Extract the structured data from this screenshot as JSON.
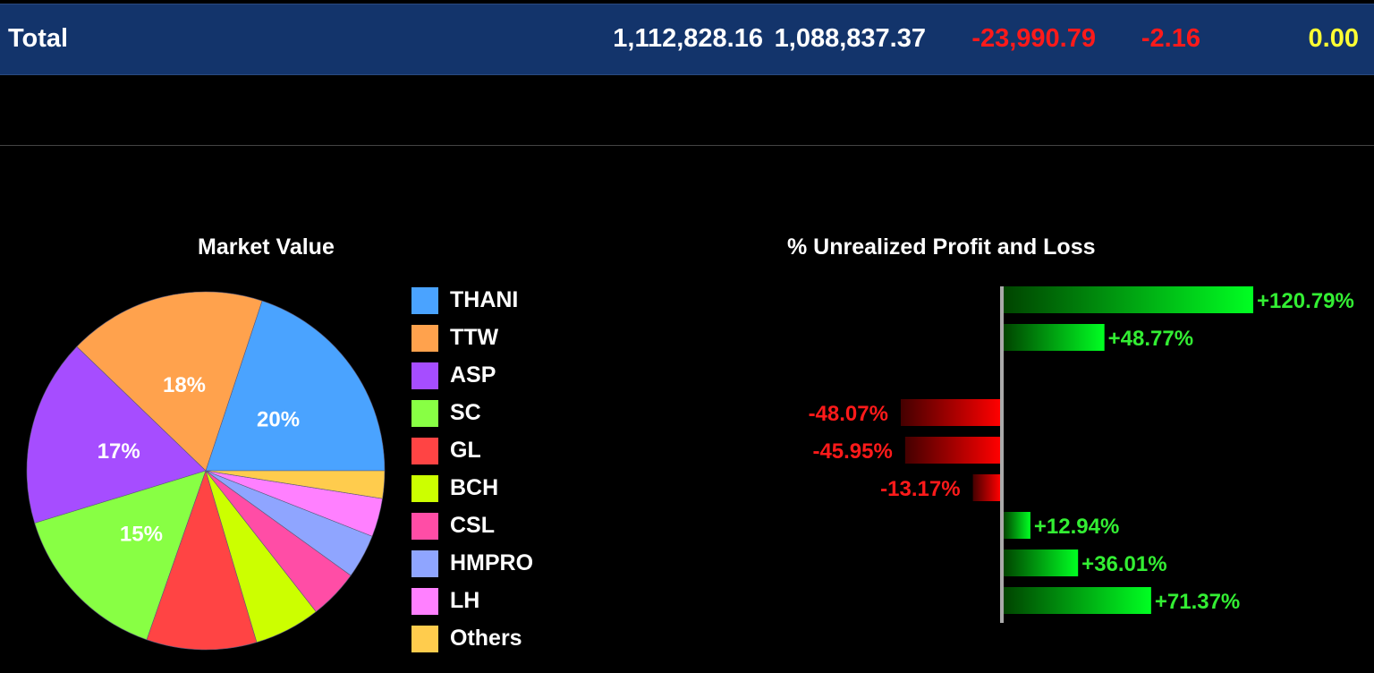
{
  "total_bar": {
    "label": "Total",
    "values": [
      "1,112,828.16",
      "1,088,837.37",
      "-23,990.79",
      "-2.16",
      "0.00"
    ]
  },
  "colors": {
    "header_bg": "#13346b",
    "positive": "#00ee00",
    "negative": "#ee0000",
    "highlight": "#ffff33"
  },
  "chart_data": [
    {
      "type": "pie",
      "title": "Market Value",
      "slices": [
        {
          "name": "THANI",
          "value": 20,
          "label": "20%",
          "color": "#4aa3ff"
        },
        {
          "name": "TTW",
          "value": 18,
          "label": "18%",
          "color": "#ffa24d"
        },
        {
          "name": "ASP",
          "value": 17,
          "label": "17%",
          "color": "#a64dff"
        },
        {
          "name": "SC",
          "value": 15,
          "label": "15%",
          "color": "#88ff44"
        },
        {
          "name": "GL",
          "value": 10,
          "label": "",
          "color": "#ff4444"
        },
        {
          "name": "BCH",
          "value": 6,
          "label": "",
          "color": "#ccff00"
        },
        {
          "name": "CSL",
          "value": 4.5,
          "label": "",
          "color": "#ff4da6"
        },
        {
          "name": "HMPRO",
          "value": 4,
          "label": "",
          "color": "#8fa5ff"
        },
        {
          "name": "LH",
          "value": 3.5,
          "label": "",
          "color": "#ff80ff"
        },
        {
          "name": "Others",
          "value": 2.5,
          "label": "",
          "color": "#ffcc4d"
        }
      ],
      "legend_position": "right"
    },
    {
      "type": "bar",
      "orientation": "horizontal",
      "title": "% Unrealized Profit and Loss",
      "values": [
        120.79,
        48.77,
        null,
        -48.07,
        -45.95,
        -13.17,
        12.94,
        36.01,
        71.37
      ],
      "labels": [
        "+120.79%",
        "+48.77%",
        "",
        "-48.07%",
        "-45.95%",
        "-13.17%",
        "+12.94%",
        "+36.01%",
        "+71.37%"
      ]
    }
  ]
}
